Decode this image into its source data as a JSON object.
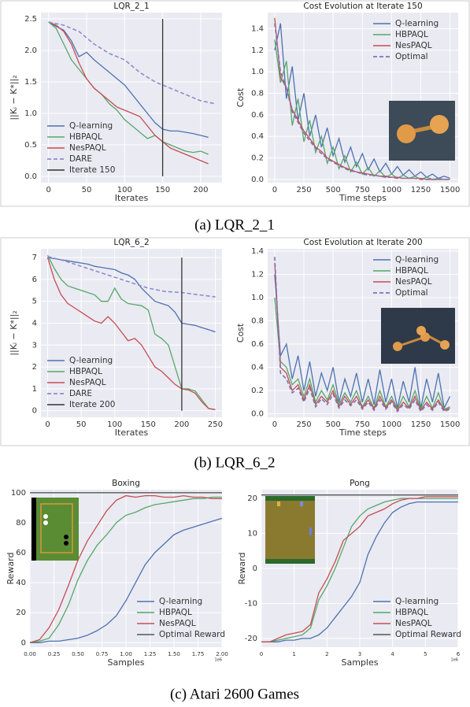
{
  "chart_data": [
    {
      "type": "line",
      "title": "LQR_2_1",
      "xlabel": "Iterates",
      "ylabel": "||Kᵢ − K*||₂",
      "x": [
        0,
        10,
        20,
        30,
        40,
        50,
        60,
        70,
        80,
        90,
        100,
        110,
        120,
        130,
        140,
        150,
        160,
        170,
        180,
        190,
        200,
        210
      ],
      "series": [
        {
          "name": "Q-learning",
          "color": "#4c72b0",
          "values": [
            2.45,
            2.38,
            2.32,
            2.15,
            1.9,
            1.97,
            1.85,
            1.75,
            1.65,
            1.55,
            1.45,
            1.3,
            1.15,
            1.0,
            0.85,
            0.75,
            0.72,
            0.72,
            0.7,
            0.68,
            0.65,
            0.62
          ]
        },
        {
          "name": "HBPAQL",
          "color": "#55a868",
          "values": [
            2.45,
            2.35,
            2.1,
            1.85,
            1.7,
            1.55,
            1.4,
            1.3,
            1.15,
            1.05,
            0.9,
            0.8,
            0.7,
            0.6,
            0.65,
            0.55,
            0.5,
            0.45,
            0.4,
            0.38,
            0.4,
            0.35
          ]
        },
        {
          "name": "NesPAQL",
          "color": "#c44e52",
          "values": [
            2.45,
            2.4,
            2.3,
            2.1,
            1.8,
            1.55,
            1.4,
            1.3,
            1.2,
            1.1,
            1.05,
            1.0,
            0.95,
            0.8,
            0.65,
            0.55,
            0.45,
            0.4,
            0.35,
            0.3,
            0.25,
            0.2
          ]
        },
        {
          "name": "DARE",
          "color": "#8c8cd0",
          "linestyle": "dashed",
          "x": [
            0,
            20,
            40,
            60,
            80,
            100,
            120,
            140,
            160,
            180,
            200,
            220
          ],
          "values": [
            2.45,
            2.4,
            2.3,
            2.1,
            1.95,
            1.85,
            1.65,
            1.5,
            1.4,
            1.3,
            1.2,
            1.15
          ]
        },
        {
          "name": "Iterate 150",
          "color": "#333333",
          "x": [
            150,
            150
          ],
          "values": [
            0,
            2.5
          ]
        }
      ],
      "xlim": [
        -10,
        228
      ],
      "xticks": [
        0,
        50,
        100,
        150,
        200
      ],
      "ylim": [
        -0.1,
        2.6
      ],
      "yticks": [
        {
          "value": 0,
          "label": "0.0"
        },
        0.5,
        {
          "value": 1,
          "label": "1.0"
        },
        1.5,
        {
          "value": 2,
          "label": "2.0"
        },
        2.5
      ],
      "grid": true,
      "legend": "lower left"
    },
    {
      "type": "line",
      "title": "Cost Evolution at Iterate 150",
      "xlabel": "Time steps",
      "ylabel": "Cost",
      "x": [
        0,
        50,
        100,
        150,
        200,
        250,
        300,
        350,
        400,
        450,
        500,
        550,
        600,
        650,
        700,
        750,
        800,
        850,
        900,
        950,
        1000,
        1050,
        1100,
        1150,
        1200,
        1250,
        1300,
        1350,
        1400,
        1450,
        1500
      ],
      "series": [
        {
          "name": "Q-learning",
          "color": "#4c72b0",
          "values": [
            1.2,
            1.45,
            0.75,
            1.05,
            0.55,
            0.8,
            0.4,
            0.6,
            0.3,
            0.48,
            0.22,
            0.38,
            0.16,
            0.3,
            0.12,
            0.24,
            0.09,
            0.19,
            0.07,
            0.15,
            0.05,
            0.12,
            0.04,
            0.09,
            0.03,
            0.07,
            0.02,
            0.05,
            0.01,
            0.03,
            0.01
          ]
        },
        {
          "name": "HBPAQL",
          "color": "#55a868",
          "values": [
            1.3,
            0.9,
            1.1,
            0.5,
            0.75,
            0.35,
            0.55,
            0.25,
            0.4,
            0.15,
            0.3,
            0.1,
            0.22,
            0.07,
            0.16,
            0.05,
            0.11,
            0.03,
            0.08,
            0.02,
            0.05,
            0.01,
            0.04,
            0.01,
            0.03,
            0,
            0.02,
            0,
            0.01,
            0,
            0
          ]
        },
        {
          "name": "NesPAQL",
          "color": "#c44e52",
          "values": [
            1.5,
            0.95,
            0.85,
            0.65,
            0.55,
            0.45,
            0.38,
            0.3,
            0.26,
            0.2,
            0.17,
            0.14,
            0.11,
            0.09,
            0.07,
            0.06,
            0.05,
            0.04,
            0.03,
            0.03,
            0.02,
            0.02,
            0.01,
            0.01,
            0.01,
            0.01,
            0,
            0,
            0,
            0,
            0
          ]
        },
        {
          "name": "Optimal",
          "color": "#8172b2",
          "linestyle": "dashed",
          "values": [
            1.45,
            1.0,
            0.85,
            0.63,
            0.53,
            0.43,
            0.36,
            0.29,
            0.24,
            0.19,
            0.16,
            0.13,
            0.1,
            0.08,
            0.07,
            0.05,
            0.04,
            0.04,
            0.03,
            0.02,
            0.02,
            0.01,
            0.01,
            0.01,
            0.01,
            0,
            0,
            0,
            0,
            0,
            0
          ]
        }
      ],
      "xlim": [
        -60,
        1570
      ],
      "xticks": [
        0,
        250,
        500,
        750,
        1000,
        1250,
        1500
      ],
      "ylim": [
        -0.03,
        1.55
      ],
      "yticks": [
        {
          "value": 0,
          "label": "0.0"
        },
        0.2,
        0.4,
        0.6,
        0.8,
        {
          "value": 1,
          "label": "1.0"
        },
        1.2,
        1.4
      ],
      "grid": true,
      "legend": "upper right"
    },
    {
      "type": "line",
      "title": "LQR_6_2",
      "xlabel": "Iterates",
      "ylabel": "||Kᵢ − K*||₂",
      "x": [
        0,
        10,
        20,
        30,
        40,
        50,
        60,
        70,
        80,
        90,
        100,
        110,
        120,
        130,
        140,
        150,
        160,
        170,
        180,
        190,
        200,
        210,
        220,
        230,
        240,
        250
      ],
      "series": [
        {
          "name": "Q-learning",
          "color": "#4c72b0",
          "values": [
            7.0,
            6.95,
            6.9,
            6.85,
            6.8,
            6.75,
            6.7,
            6.6,
            6.55,
            6.5,
            6.45,
            6.3,
            6.2,
            6.0,
            5.6,
            5.3,
            5.0,
            4.9,
            4.8,
            4.5,
            4.0,
            3.95,
            3.9,
            3.8,
            3.7,
            3.6
          ]
        },
        {
          "name": "HBPAQL",
          "color": "#55a868",
          "values": [
            7.1,
            6.5,
            6.0,
            5.7,
            5.6,
            5.5,
            5.4,
            5.3,
            5.0,
            5.0,
            5.6,
            5.1,
            4.9,
            4.85,
            4.8,
            4.6,
            3.5,
            3.3,
            3.0,
            2.0,
            1.0,
            1.0,
            0.9,
            0.5,
            0.1,
            0.05
          ]
        },
        {
          "name": "NesPAQL",
          "color": "#c44e52",
          "values": [
            7.0,
            6.0,
            5.3,
            4.9,
            4.7,
            4.5,
            4.3,
            4.1,
            4.0,
            4.3,
            4.0,
            3.6,
            3.2,
            3.3,
            3.0,
            2.5,
            2.0,
            1.8,
            1.5,
            1.2,
            1.0,
            0.95,
            0.8,
            0.4,
            0.1,
            0.05
          ]
        },
        {
          "name": "DARE",
          "color": "#8c8cd0",
          "linestyle": "dashed",
          "x": [
            0,
            25,
            50,
            75,
            100,
            125,
            150,
            175,
            200,
            225,
            250
          ],
          "values": [
            7.05,
            6.85,
            6.6,
            6.35,
            6.1,
            5.85,
            5.6,
            5.45,
            5.4,
            5.3,
            5.2
          ]
        },
        {
          "name": "Iterate 200",
          "color": "#333333",
          "x": [
            200,
            200
          ],
          "values": [
            0,
            7
          ]
        }
      ],
      "xlim": [
        -10,
        260
      ],
      "xticks": [
        0,
        50,
        100,
        150,
        200,
        250
      ],
      "ylim": [
        -0.3,
        7.4
      ],
      "yticks": [
        0,
        1,
        2,
        3,
        4,
        5,
        6,
        7
      ],
      "grid": true,
      "legend": "lower left"
    },
    {
      "type": "line",
      "title": "Cost Evolution at Iterate 200",
      "xlabel": "Time steps",
      "ylabel": "Cost",
      "x": [
        0,
        50,
        100,
        150,
        200,
        250,
        300,
        350,
        400,
        450,
        500,
        550,
        600,
        650,
        700,
        750,
        800,
        850,
        900,
        950,
        1000,
        1050,
        1100,
        1150,
        1200,
        1250,
        1300,
        1350,
        1400,
        1450,
        1500
      ],
      "series": [
        {
          "name": "Q-learning",
          "color": "#4c72b0",
          "values": [
            1.2,
            0.5,
            0.6,
            0.3,
            0.5,
            0.2,
            0.45,
            0.15,
            0.35,
            0.2,
            0.4,
            0.1,
            0.3,
            0.15,
            0.35,
            0.1,
            0.3,
            0.08,
            0.38,
            0.1,
            0.3,
            0.05,
            0.28,
            0.1,
            0.4,
            0.05,
            0.3,
            0.1,
            0.35,
            0.05,
            0.15
          ]
        },
        {
          "name": "HBPAQL",
          "color": "#55a868",
          "values": [
            1.0,
            0.45,
            0.4,
            0.25,
            0.3,
            0.15,
            0.3,
            0.1,
            0.2,
            0.12,
            0.25,
            0.08,
            0.18,
            0.1,
            0.2,
            0.06,
            0.15,
            0.05,
            0.2,
            0.06,
            0.15,
            0.04,
            0.15,
            0.06,
            0.2,
            0.04,
            0.15,
            0.05,
            0.18,
            0.04,
            0.06
          ]
        },
        {
          "name": "NesPAQL",
          "color": "#c44e52",
          "values": [
            1.3,
            0.4,
            0.35,
            0.2,
            0.25,
            0.12,
            0.25,
            0.08,
            0.15,
            0.1,
            0.2,
            0.06,
            0.15,
            0.08,
            0.15,
            0.05,
            0.12,
            0.04,
            0.15,
            0.05,
            0.12,
            0.03,
            0.1,
            0.05,
            0.15,
            0.03,
            0.1,
            0.04,
            0.12,
            0.03,
            0.05
          ]
        },
        {
          "name": "Optimal",
          "color": "#8172b2",
          "linestyle": "dashed",
          "values": [
            1.35,
            0.35,
            0.3,
            0.18,
            0.22,
            0.1,
            0.22,
            0.06,
            0.13,
            0.08,
            0.17,
            0.05,
            0.12,
            0.07,
            0.12,
            0.04,
            0.1,
            0.03,
            0.12,
            0.04,
            0.1,
            0.02,
            0.08,
            0.04,
            0.12,
            0.02,
            0.08,
            0.03,
            0.1,
            0.02,
            0.04
          ]
        }
      ],
      "xlim": [
        -60,
        1570
      ],
      "xticks": [
        0,
        250,
        500,
        750,
        1000,
        1250,
        1500
      ],
      "ylim": [
        -0.03,
        1.42
      ],
      "yticks": [
        {
          "value": 0,
          "label": "0.0"
        },
        0.2,
        0.4,
        0.6,
        0.8,
        {
          "value": 1,
          "label": "1.0"
        },
        1.2,
        1.4
      ],
      "grid": true,
      "legend": "upper right"
    },
    {
      "type": "line",
      "title": "Boxing",
      "xlabel": "Samples",
      "ylabel": "Reward",
      "x_offset_label": "1e6",
      "x": [
        0,
        0.1,
        0.2,
        0.3,
        0.4,
        0.5,
        0.6,
        0.7,
        0.8,
        0.9,
        1.0,
        1.1,
        1.2,
        1.3,
        1.4,
        1.5,
        1.6,
        1.7,
        1.8,
        1.9,
        2.0
      ],
      "series": [
        {
          "name": "Q-learning",
          "color": "#4c72b0",
          "values": [
            0,
            0,
            1,
            1,
            2,
            3,
            5,
            8,
            12,
            18,
            28,
            40,
            52,
            60,
            66,
            72,
            75,
            77,
            79,
            81,
            83
          ]
        },
        {
          "name": "HBPAQL",
          "color": "#55a868",
          "values": [
            0,
            1,
            3,
            12,
            25,
            42,
            55,
            65,
            72,
            80,
            85,
            87,
            90,
            92,
            93,
            94,
            95,
            96,
            96,
            97,
            97
          ]
        },
        {
          "name": "NesPAQL",
          "color": "#c44e52",
          "values": [
            0,
            2,
            10,
            22,
            38,
            55,
            68,
            78,
            88,
            95,
            98,
            97,
            98,
            98,
            97,
            97,
            98,
            97,
            97,
            96,
            96
          ]
        },
        {
          "name": "Optimal Reward",
          "color": "#555555",
          "x": [
            0,
            2.0
          ],
          "values": [
            100,
            100
          ]
        }
      ],
      "xlim": [
        0,
        2.0
      ],
      "xticks": [
        {
          "value": 0,
          "label": "0.00"
        },
        0.25,
        {
          "value": 0.5,
          "label": "0.50"
        },
        0.75,
        {
          "value": 1,
          "label": "1.00"
        },
        1.25,
        {
          "value": 1.5,
          "label": "1.50"
        },
        1.75,
        {
          "value": 2,
          "label": "2.00"
        }
      ],
      "ylim": [
        -3,
        102
      ],
      "yticks": [
        0,
        20,
        40,
        60,
        80,
        100
      ],
      "grid": true,
      "legend": "lower right"
    },
    {
      "type": "line",
      "title": "Pong",
      "xlabel": "Samples",
      "ylabel": "Reward",
      "x_offset_label": "1e6",
      "x": [
        0,
        0.25,
        0.5,
        0.75,
        1.0,
        1.25,
        1.5,
        1.75,
        2.0,
        2.25,
        2.5,
        2.75,
        3.0,
        3.25,
        3.5,
        3.75,
        4.0,
        4.25,
        4.5,
        4.75,
        5.0,
        5.25,
        5.5,
        5.75,
        6.0
      ],
      "series": [
        {
          "name": "Q-learning",
          "color": "#4c72b0",
          "values": [
            -21,
            -21,
            -21,
            -20.5,
            -20.5,
            -20,
            -20,
            -19,
            -17,
            -14,
            -11,
            -8,
            -4,
            4,
            9,
            13,
            16,
            17.5,
            18.5,
            19,
            19,
            19,
            19,
            19,
            19
          ]
        },
        {
          "name": "HBPAQL",
          "color": "#55a868",
          "values": [
            -21,
            -21,
            -20.5,
            -20,
            -19.5,
            -19,
            -17,
            -9,
            -5,
            0,
            6,
            12,
            15,
            17,
            18,
            19,
            19.5,
            20,
            20,
            20,
            20,
            20,
            20,
            20,
            20
          ]
        },
        {
          "name": "NesPAQL",
          "color": "#c44e52",
          "values": [
            -21,
            -21,
            -20,
            -19,
            -18.5,
            -18,
            -16,
            -7,
            -3,
            2,
            8,
            10,
            12,
            15,
            16,
            17,
            18.5,
            19.5,
            20,
            20,
            20.5,
            20.5,
            20.5,
            20.5,
            20.5
          ]
        },
        {
          "name": "Optimal Reward",
          "color": "#555555",
          "x": [
            0,
            6
          ],
          "values": [
            21,
            21
          ]
        }
      ],
      "xlim": [
        0,
        6
      ],
      "xticks": [
        0,
        1,
        2,
        3,
        4,
        5,
        6
      ],
      "ylim": [
        -22.5,
        22.5
      ],
      "yticks": [
        -20,
        -10,
        0,
        10,
        20
      ],
      "grid": true,
      "legend": "lower right"
    }
  ],
  "captions": [
    "(a) LQR_2_1",
    "(b) LQR_6_2",
    "(c) Atari 2600 Games"
  ]
}
